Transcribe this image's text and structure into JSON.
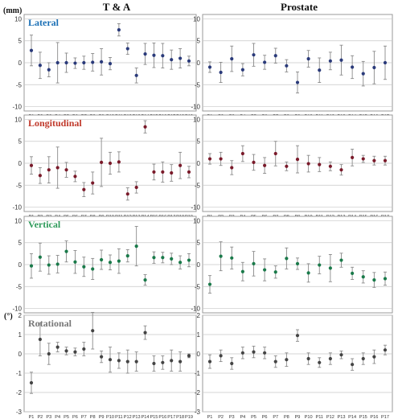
{
  "column_titles": [
    "T & A",
    "Prostate"
  ],
  "units": {
    "mm": "(mm)",
    "deg": "(°)"
  },
  "colors": {
    "Lateral": "#2a3a7a",
    "Longitudinal": "#7a1a2a",
    "Vertical": "#1a7a4a",
    "Rotational": "#444444",
    "Lateral_title": "#1a6fb5",
    "Longitudinal_title": "#c0392b",
    "Vertical_title": "#2e9a5a",
    "Rotational_title": "#777777",
    "grid": "#c8c8c8",
    "errorbar": "#8a8a8a",
    "frame": "#999999"
  },
  "chart_data": [
    {
      "type": "scatter",
      "column": "T & A",
      "title": "Lateral",
      "ylabel": "(mm)",
      "ylim": [
        -11,
        11
      ],
      "yticks": [
        10,
        5,
        0,
        -5,
        -10
      ],
      "grid": true,
      "categories": [
        "P1",
        "P2",
        "P3",
        "P4",
        "P5",
        "P6",
        "P7",
        "P8",
        "P9",
        "P10",
        "P11",
        "P12",
        "P13",
        "P14",
        "P15",
        "P16",
        "P17",
        "P18",
        "P19"
      ],
      "mean": [
        2.8,
        -0.6,
        -1.6,
        0.0,
        0.0,
        -0.1,
        0.0,
        0.1,
        0.2,
        -0.2,
        7.5,
        3.2,
        -2.9,
        2.0,
        1.7,
        1.6,
        0.7,
        1.0,
        0.4
      ],
      "err": [
        3.5,
        3.0,
        1.6,
        4.6,
        2.2,
        1.2,
        1.5,
        2.0,
        3.0,
        1.4,
        1.4,
        1.3,
        1.7,
        2.4,
        2.8,
        2.8,
        2.2,
        2.2,
        1.1
      ]
    },
    {
      "type": "scatter",
      "column": "Prostate",
      "title": "",
      "ylabel": "",
      "ylim": [
        -11,
        11
      ],
      "yticks": [
        10,
        5,
        0,
        -5,
        -10
      ],
      "grid": true,
      "categories": [
        "P1",
        "P2",
        "P3",
        "P4",
        "P5",
        "P6",
        "P7",
        "P8",
        "P9",
        "P10",
        "P11",
        "P12",
        "P13",
        "P14",
        "P15",
        "P16",
        "P17"
      ],
      "mean": [
        -1.0,
        -2.2,
        0.9,
        -1.6,
        1.8,
        0.1,
        1.6,
        -0.7,
        -4.5,
        0.9,
        -1.7,
        0.4,
        0.6,
        -1.0,
        -2.5,
        -1.1,
        0.0
      ],
      "err": [
        1.2,
        2.3,
        2.9,
        1.4,
        2.6,
        1.6,
        1.7,
        1.4,
        2.4,
        1.9,
        2.8,
        2.0,
        3.4,
        2.6,
        2.8,
        3.7,
        3.8
      ]
    },
    {
      "type": "scatter",
      "column": "T & A",
      "title": "Longitudinal",
      "ylabel": "",
      "ylim": [
        -11,
        11
      ],
      "yticks": [
        10,
        5,
        0,
        -5,
        -10
      ],
      "grid": true,
      "categories": [
        "P1",
        "P2",
        "P3",
        "P4",
        "P5",
        "P6",
        "P7",
        "P8",
        "P9",
        "P10",
        "P11",
        "P12",
        "P13",
        "P14",
        "P15",
        "P16",
        "P17",
        "P18",
        "P19"
      ],
      "mean": [
        -0.5,
        -2.8,
        -1.5,
        -1.0,
        -1.5,
        -3.0,
        -6.0,
        -4.5,
        0.2,
        0.0,
        0.3,
        -7.0,
        -5.5,
        8.3,
        -2.0,
        -2.0,
        -2.2,
        -0.5,
        -2.0
      ],
      "err": [
        2.0,
        1.8,
        3.0,
        4.7,
        1.7,
        1.2,
        1.6,
        2.5,
        5.5,
        2.5,
        2.3,
        1.4,
        1.3,
        1.4,
        1.8,
        2.3,
        1.9,
        3.0,
        1.3
      ]
    },
    {
      "type": "scatter",
      "column": "Prostate",
      "title": "",
      "ylabel": "",
      "ylim": [
        -11,
        11
      ],
      "yticks": [
        10,
        5,
        0,
        -5,
        -10
      ],
      "grid": true,
      "categories": [
        "P1",
        "P2",
        "P3",
        "P4",
        "P5",
        "P6",
        "P7",
        "P8",
        "P9",
        "P10",
        "P11",
        "P12",
        "P13",
        "P14",
        "P15",
        "P16",
        "P17"
      ],
      "mean": [
        1.0,
        1.0,
        -1.0,
        2.2,
        0.2,
        -0.5,
        2.2,
        -0.7,
        0.9,
        -0.1,
        -0.3,
        -0.7,
        -1.5,
        1.3,
        1.0,
        0.6,
        0.6
      ],
      "err": [
        1.2,
        1.5,
        1.6,
        1.8,
        1.8,
        1.8,
        2.8,
        1.0,
        3.1,
        1.9,
        1.6,
        1.0,
        1.2,
        1.9,
        0.8,
        1.0,
        1.0
      ]
    },
    {
      "type": "scatter",
      "column": "T & A",
      "title": "Vertical",
      "ylabel": "",
      "ylim": [
        -11,
        11
      ],
      "yticks": [
        10,
        5,
        0,
        -5,
        -10
      ],
      "grid": true,
      "categories": [
        "P1",
        "P2",
        "P3",
        "P4",
        "P5",
        "P6",
        "P7",
        "P8",
        "P9",
        "P10",
        "P11",
        "P12",
        "P13",
        "P14",
        "P15",
        "P16",
        "P17",
        "P18",
        "P19"
      ],
      "mean": [
        -0.3,
        1.7,
        -0.1,
        0.1,
        3.0,
        0.6,
        -0.5,
        -1.0,
        1.1,
        0.5,
        0.8,
        2.0,
        4.2,
        -3.5,
        1.6,
        1.6,
        1.3,
        0.5,
        1.0
      ],
      "err": [
        2.8,
        3.2,
        2.1,
        2.0,
        2.4,
        2.6,
        2.2,
        2.4,
        2.2,
        1.7,
        2.8,
        1.4,
        4.5,
        1.2,
        1.3,
        1.2,
        1.3,
        1.5,
        1.5
      ]
    },
    {
      "type": "scatter",
      "column": "Prostate",
      "title": "",
      "ylabel": "",
      "ylim": [
        -11,
        11
      ],
      "yticks": [
        10,
        5,
        0,
        -5,
        -10
      ],
      "grid": true,
      "categories": [
        "P1",
        "P2",
        "P3",
        "P4",
        "P5",
        "P6",
        "P7",
        "P8",
        "P9",
        "P10",
        "P11",
        "P12",
        "P13",
        "P14",
        "P15",
        "P16",
        "P17"
      ],
      "mean": [
        -4.5,
        1.9,
        1.5,
        -1.6,
        0.2,
        -1.2,
        -1.7,
        1.4,
        0.2,
        -1.9,
        -0.1,
        -0.8,
        1.0,
        -2.0,
        -2.8,
        -3.5,
        -3.2
      ],
      "err": [
        2.0,
        3.3,
        2.5,
        2.1,
        2.8,
        2.5,
        1.4,
        2.4,
        1.3,
        2.1,
        2.0,
        3.1,
        1.6,
        1.4,
        1.4,
        1.7,
        1.5
      ]
    },
    {
      "type": "scatter",
      "column": "T & A",
      "title": "Rotational",
      "ylabel": "(°)",
      "ylim": [
        -3,
        2
      ],
      "yticks": [
        2,
        1,
        0,
        -1,
        -2,
        -3
      ],
      "grid": true,
      "categories": [
        "P1",
        "P2",
        "P3",
        "P4",
        "P5",
        "P6",
        "P7",
        "P8",
        "P9",
        "P10",
        "P11",
        "P12",
        "P13",
        "P14",
        "P15",
        "P16",
        "P17",
        "P18",
        "P19"
      ],
      "mean": [
        -1.5,
        0.75,
        0.0,
        0.35,
        0.15,
        0.1,
        0.25,
        1.2,
        -0.15,
        -0.3,
        -0.35,
        -0.4,
        -0.4,
        1.1,
        -0.5,
        -0.45,
        -0.35,
        -0.4,
        -0.1
      ],
      "err": [
        0.55,
        0.85,
        0.55,
        0.25,
        0.2,
        0.2,
        0.35,
        0.95,
        0.3,
        0.65,
        0.4,
        0.6,
        0.5,
        0.35,
        0.4,
        0.35,
        0.55,
        0.5,
        0.1
      ]
    },
    {
      "type": "scatter",
      "column": "Prostate",
      "title": "",
      "ylabel": "",
      "ylim": [
        -3,
        2
      ],
      "yticks": [
        2,
        1,
        0,
        -1,
        -2,
        -3
      ],
      "grid": true,
      "categories": [
        "P1",
        "P2",
        "P3",
        "P4",
        "P5",
        "P6",
        "P7",
        "P8",
        "P9",
        "P10",
        "P11",
        "P12",
        "P13",
        "P14",
        "P15",
        "P16",
        "P17"
      ],
      "mean": [
        -0.4,
        -0.1,
        -0.5,
        0.05,
        0.1,
        0.05,
        -0.4,
        -0.3,
        0.95,
        -0.25,
        -0.45,
        -0.25,
        -0.05,
        -0.55,
        -0.25,
        -0.15,
        0.2
      ],
      "err": [
        0.35,
        0.3,
        0.3,
        0.3,
        0.3,
        0.3,
        0.3,
        0.35,
        0.3,
        0.3,
        0.25,
        0.3,
        0.2,
        0.3,
        0.3,
        0.35,
        0.25
      ]
    }
  ]
}
